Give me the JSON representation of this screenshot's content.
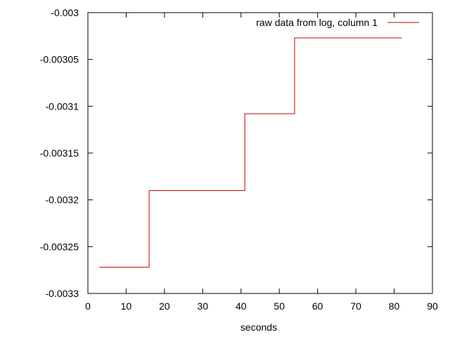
{
  "chart_data": {
    "type": "line",
    "step": true,
    "xlabel": "seconds",
    "ylabel": "",
    "xlim": [
      0,
      90
    ],
    "ylim": [
      -0.0033,
      -0.003
    ],
    "x_ticks": [
      "0",
      "10",
      "20",
      "30",
      "40",
      "50",
      "60",
      "70",
      "80",
      "90"
    ],
    "x_tick_values": [
      0,
      10,
      20,
      30,
      40,
      50,
      60,
      70,
      80,
      90
    ],
    "y_ticks": [
      "-0.003",
      "-0.00305",
      "-0.0031",
      "-0.00315",
      "-0.0032",
      "-0.00325",
      "-0.0033"
    ],
    "y_tick_values": [
      -0.003,
      -0.00305,
      -0.0031,
      -0.00315,
      -0.0032,
      -0.00325,
      -0.0033
    ],
    "legend_position": "top-right",
    "grid": false,
    "series": [
      {
        "name": "raw data from log, column 1",
        "color": "#cc0000",
        "x": [
          3,
          16,
          41,
          54,
          82
        ],
        "y": [
          -0.003272,
          -0.00319,
          -0.003108,
          -0.003027,
          -0.003027
        ]
      }
    ]
  }
}
